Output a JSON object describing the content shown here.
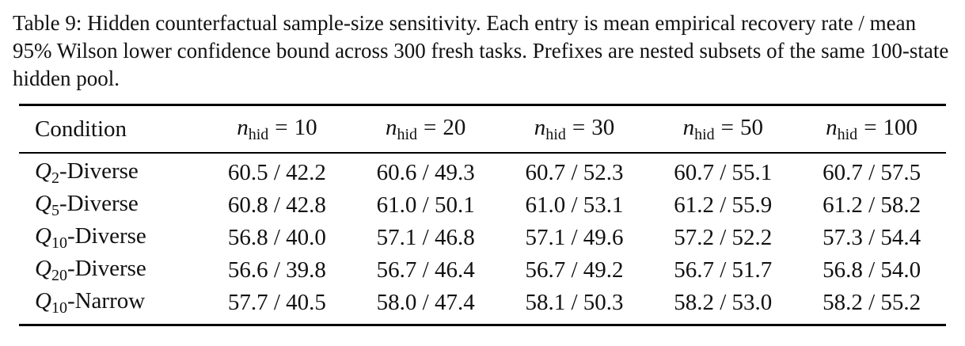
{
  "caption": "Table 9: Hidden counterfactual sample-size sensitivity. Each entry is mean empirical recovery rate / mean 95% Wilson lower confidence bound across 300 fresh tasks. Prefixes are nested subsets of the same 100-state hidden pool.",
  "table": {
    "condition_header": "Condition",
    "columns": [
      {
        "var": "n",
        "sub": "hid",
        "eq": "=",
        "value": "10"
      },
      {
        "var": "n",
        "sub": "hid",
        "eq": "=",
        "value": "20"
      },
      {
        "var": "n",
        "sub": "hid",
        "eq": "=",
        "value": "30"
      },
      {
        "var": "n",
        "sub": "hid",
        "eq": "=",
        "value": "50"
      },
      {
        "var": "n",
        "sub": "hid",
        "eq": "=",
        "value": "100"
      }
    ],
    "rows": [
      {
        "q": "Q",
        "q_sub": "2",
        "label": "-Diverse",
        "cells": [
          "60.5 / 42.2",
          "60.6 / 49.3",
          "60.7 / 52.3",
          "60.7 / 55.1",
          "60.7 / 57.5"
        ]
      },
      {
        "q": "Q",
        "q_sub": "5",
        "label": "-Diverse",
        "cells": [
          "60.8 / 42.8",
          "61.0 / 50.1",
          "61.0 / 53.1",
          "61.2 / 55.9",
          "61.2 / 58.2"
        ]
      },
      {
        "q": "Q",
        "q_sub": "10",
        "label": "-Diverse",
        "cells": [
          "56.8 / 40.0",
          "57.1 / 46.8",
          "57.1 / 49.6",
          "57.2 / 52.2",
          "57.3 / 54.4"
        ]
      },
      {
        "q": "Q",
        "q_sub": "20",
        "label": "-Diverse",
        "cells": [
          "56.6 / 39.8",
          "56.7 / 46.4",
          "56.7 / 49.2",
          "56.7 / 51.7",
          "56.8 / 54.0"
        ]
      },
      {
        "q": "Q",
        "q_sub": "10",
        "label": "-Narrow",
        "cells": [
          "57.7 / 40.5",
          "58.0 / 47.4",
          "58.1 / 50.3",
          "58.2 / 53.0",
          "58.2 / 55.2"
        ]
      }
    ]
  }
}
